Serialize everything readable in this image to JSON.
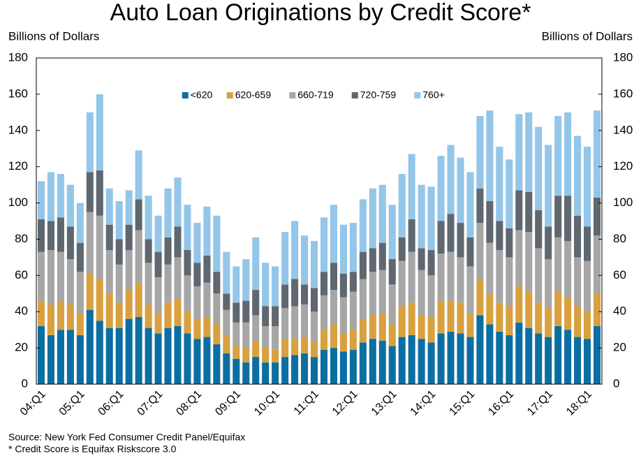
{
  "chart_data": {
    "type": "stacked_bar",
    "title": "Auto Loan Originations by Credit Score*",
    "ylabel": "Billions of Dollars",
    "y2label": "Billions of Dollars",
    "source": "Source: New York Fed Consumer Credit Panel/Equifax",
    "note": "* Credit Score is Equifax Riskscore 3.0",
    "categories": [
      "04:Q1",
      null,
      null,
      null,
      "05:Q1",
      null,
      null,
      null,
      "06:Q1",
      null,
      null,
      null,
      "07:Q1",
      null,
      null,
      null,
      "08:Q1",
      null,
      null,
      null,
      "09:Q1",
      null,
      null,
      null,
      "10:Q1",
      null,
      null,
      null,
      "11:Q1",
      null,
      null,
      null,
      "12:Q1",
      null,
      null,
      null,
      "13:Q1",
      null,
      null,
      null,
      "14:Q1",
      null,
      null,
      null,
      "15:Q1",
      null,
      null,
      null,
      "16:Q1",
      null,
      null,
      null,
      "17:Q1",
      null,
      null,
      null,
      "18:Q1",
      null
    ],
    "series": [
      {
        "name": "<620",
        "color": "#0b6ea3",
        "values": [
          32,
          27,
          30,
          30,
          27,
          41,
          35,
          31,
          31,
          36,
          37,
          31,
          28,
          31,
          32,
          28,
          25,
          26,
          22,
          17,
          14,
          12,
          15,
          12,
          12,
          15,
          16,
          17,
          15,
          19,
          20,
          18,
          19,
          23,
          25,
          24,
          21,
          26,
          27,
          25,
          23,
          28,
          29,
          28,
          26,
          38,
          33,
          29,
          27,
          34,
          31,
          28,
          26,
          32,
          30,
          26,
          25,
          32
        ]
      },
      {
        "name": "620-659",
        "color": "#d9a03f",
        "values": [
          14,
          17,
          16,
          14,
          12,
          20,
          23,
          19,
          14,
          16,
          19,
          13,
          11,
          14,
          15,
          12,
          11,
          11,
          11,
          10,
          7,
          8,
          9,
          8,
          7,
          10,
          9,
          9,
          9,
          11,
          13,
          10,
          11,
          13,
          13,
          15,
          12,
          17,
          18,
          13,
          14,
          18,
          17,
          17,
          13,
          20,
          17,
          16,
          16,
          20,
          20,
          17,
          16,
          19,
          18,
          17,
          15,
          18
        ]
      },
      {
        "name": "660-719",
        "color": "#a6a6a6",
        "values": [
          27,
          30,
          27,
          25,
          23,
          34,
          35,
          24,
          21,
          22,
          29,
          23,
          20,
          21,
          23,
          20,
          18,
          19,
          17,
          14,
          13,
          14,
          14,
          12,
          13,
          17,
          18,
          18,
          16,
          19,
          19,
          20,
          21,
          22,
          24,
          24,
          22,
          25,
          28,
          25,
          23,
          26,
          27,
          25,
          26,
          31,
          28,
          29,
          27,
          31,
          33,
          30,
          27,
          30,
          31,
          27,
          28,
          32
        ]
      },
      {
        "name": "720-759",
        "color": "#5f6770",
        "values": [
          18,
          16,
          19,
          18,
          16,
          22,
          25,
          14,
          14,
          14,
          17,
          13,
          14,
          15,
          17,
          14,
          13,
          15,
          12,
          9,
          11,
          12,
          14,
          11,
          11,
          13,
          15,
          11,
          13,
          13,
          15,
          13,
          11,
          15,
          13,
          15,
          14,
          13,
          18,
          12,
          14,
          18,
          21,
          19,
          16,
          19,
          23,
          16,
          16,
          22,
          22,
          21,
          18,
          23,
          25,
          23,
          19,
          21
        ]
      },
      {
        "name": "760+",
        "color": "#93c6e8",
        "values": [
          21,
          27,
          24,
          23,
          22,
          33,
          42,
          20,
          21,
          19,
          27,
          24,
          20,
          27,
          27,
          25,
          22,
          27,
          31,
          23,
          20,
          23,
          29,
          24,
          22,
          29,
          32,
          27,
          26,
          30,
          32,
          27,
          27,
          29,
          33,
          32,
          30,
          35,
          36,
          35,
          35,
          36,
          38,
          36,
          36,
          40,
          50,
          41,
          38,
          42,
          44,
          46,
          45,
          44,
          46,
          44,
          44,
          48
        ]
      }
    ],
    "ylim": [
      0,
      180
    ],
    "yticks": [
      0,
      20,
      40,
      60,
      80,
      100,
      120,
      140,
      160,
      180
    ],
    "grid": false,
    "legend": "top"
  }
}
